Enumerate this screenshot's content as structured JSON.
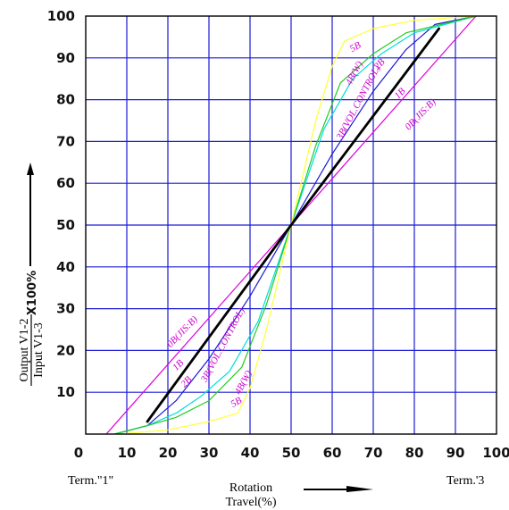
{
  "chart_data": {
    "type": "line",
    "title": "",
    "xlabel": "Rotation Travel(%)",
    "xlabel_lines": [
      "Rotation",
      "Travel(%)"
    ],
    "ylabel": {
      "numerator": "Output V1-2",
      "denominator": "Input V1-3",
      "multiplier": "X100%"
    },
    "x_start_label": "Term.\"1\"",
    "x_end_label": "Term.'3",
    "xlim": [
      0,
      100
    ],
    "ylim": [
      0,
      100
    ],
    "x_ticks": [
      "0",
      "10",
      "20",
      "30",
      "40",
      "50",
      "60",
      "70",
      "80",
      "90",
      "100"
    ],
    "y_ticks": [
      "10",
      "20",
      "30",
      "40",
      "50",
      "60",
      "70",
      "80",
      "90",
      "100"
    ],
    "grid": true,
    "colors": {
      "grid": "#1a1ad6",
      "frame": "#000000",
      "label": "#cc00cc"
    },
    "series": [
      {
        "key": "0B",
        "color": "#dd00dd",
        "width": 1.2,
        "points": [
          [
            5,
            0
          ],
          [
            50,
            50
          ],
          [
            95,
            100
          ]
        ]
      },
      {
        "key": "1B",
        "color": "#000000",
        "width": 2.8,
        "points": [
          [
            15,
            3
          ],
          [
            50,
            50
          ],
          [
            86,
            97
          ]
        ]
      },
      {
        "key": "2B",
        "color": "#1a1ad6",
        "width": 1.2,
        "points": [
          [
            7,
            0
          ],
          [
            15,
            2
          ],
          [
            22,
            8
          ],
          [
            30,
            18
          ],
          [
            40,
            33
          ],
          [
            50,
            50
          ],
          [
            60,
            67
          ],
          [
            70,
            82
          ],
          [
            78,
            92
          ],
          [
            85,
            98
          ],
          [
            95,
            100
          ]
        ]
      },
      {
        "key": "3B",
        "color": "#00dddd",
        "width": 1.2,
        "points": [
          [
            7,
            0
          ],
          [
            15,
            2
          ],
          [
            22,
            5
          ],
          [
            28,
            9
          ],
          [
            35,
            15
          ],
          [
            42,
            27
          ],
          [
            50,
            50
          ],
          [
            58,
            73
          ],
          [
            65,
            85
          ],
          [
            72,
            91
          ],
          [
            80,
            96
          ],
          [
            95,
            100
          ]
        ]
      },
      {
        "key": "4B",
        "color": "#22cc22",
        "width": 1.2,
        "points": [
          [
            7,
            0
          ],
          [
            15,
            2
          ],
          [
            22,
            4
          ],
          [
            30,
            8
          ],
          [
            38,
            16
          ],
          [
            44,
            31
          ],
          [
            50,
            50
          ],
          [
            56,
            69
          ],
          [
            62,
            84
          ],
          [
            70,
            91
          ],
          [
            78,
            96
          ],
          [
            95,
            100
          ]
        ]
      },
      {
        "key": "5B",
        "color": "#ffff33",
        "width": 1.2,
        "points": [
          [
            8,
            0
          ],
          [
            20,
            1
          ],
          [
            30,
            3
          ],
          [
            37,
            5
          ],
          [
            40,
            11
          ],
          [
            44,
            25
          ],
          [
            50,
            50
          ],
          [
            56,
            75
          ],
          [
            60,
            88
          ],
          [
            63,
            94
          ],
          [
            70,
            97
          ],
          [
            80,
            99
          ],
          [
            95,
            100
          ]
        ]
      }
    ],
    "curve_labels": [
      {
        "text": "0B(JIS:B)",
        "x": 82,
        "y": 76,
        "angle": -46
      },
      {
        "text": "1B",
        "x": 77,
        "y": 81,
        "angle": -46
      },
      {
        "text": "2B",
        "x": 72,
        "y": 88,
        "angle": -46
      },
      {
        "text": "3B(VOL.CONTROL)",
        "x": 67,
        "y": 79,
        "angle": -62
      },
      {
        "text": "4B(W)",
        "x": 66,
        "y": 86,
        "angle": -62
      },
      {
        "text": "5B",
        "x": 66,
        "y": 92,
        "angle": -30
      },
      {
        "text": "0B(JIS:B)",
        "x": 24,
        "y": 24,
        "angle": -46
      },
      {
        "text": "1B",
        "x": 23,
        "y": 16,
        "angle": -46
      },
      {
        "text": "2B",
        "x": 25,
        "y": 12,
        "angle": -46
      },
      {
        "text": "3B(VOL.CONTROL)",
        "x": 34,
        "y": 21,
        "angle": -62
      },
      {
        "text": "4B(W)",
        "x": 39,
        "y": 12,
        "angle": -62
      },
      {
        "text": "5B",
        "x": 37,
        "y": 7,
        "angle": -30
      }
    ]
  }
}
